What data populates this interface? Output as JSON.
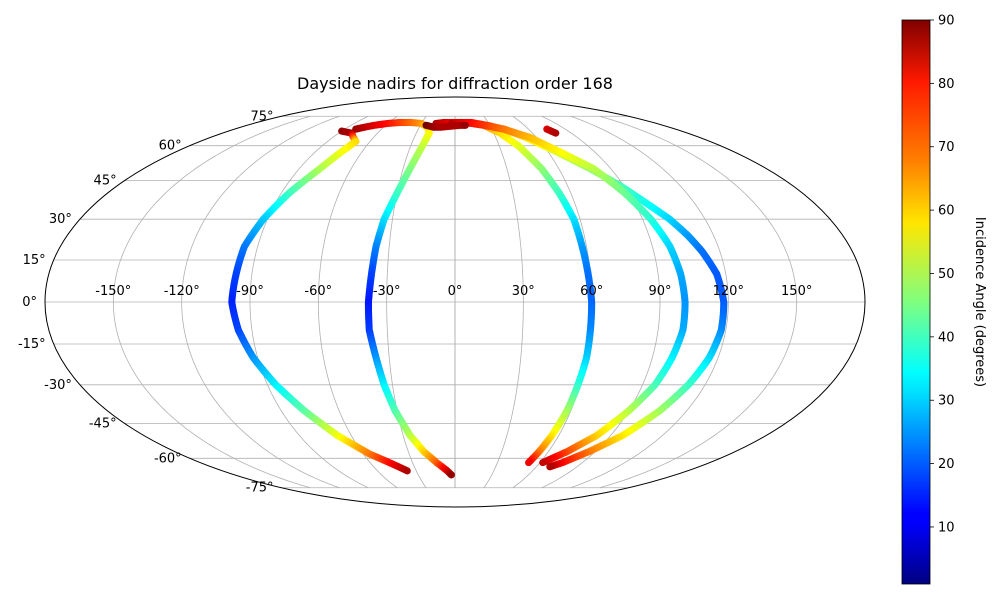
{
  "chart_data": {
    "type": "scatter",
    "title": "Dayside nadirs for diffraction order 168",
    "projection": "mollweide",
    "grid": true,
    "xlabel": "",
    "ylabel": "",
    "lon_ticks": [
      "-150°",
      "-120°",
      "-90°",
      "-60°",
      "-30°",
      "0°",
      "30°",
      "60°",
      "90°",
      "120°",
      "150°"
    ],
    "lat_ticks": [
      "75°",
      "60°",
      "45°",
      "30°",
      "15°",
      "0°",
      "-15°",
      "-30°",
      "-45°",
      "-60°",
      "-75°"
    ],
    "lat_range": [
      -75,
      75
    ],
    "colorbar": {
      "label": "Incidence Angle (degrees)",
      "colormap": "jet",
      "range": [
        1,
        90
      ],
      "ticks": [
        "10",
        "20",
        "30",
        "40",
        "50",
        "60",
        "70",
        "80",
        "90"
      ],
      "placement": "right"
    },
    "series": [
      {
        "points": [
          [
            -81,
            68,
            88
          ],
          [
            -76,
            69,
            85
          ],
          [
            -70,
            70,
            82
          ],
          [
            -60,
            71,
            78
          ],
          [
            -50,
            71.5,
            74
          ],
          [
            -40,
            71.5,
            70
          ],
          [
            -30,
            71,
            66
          ],
          [
            -23,
            69,
            61
          ],
          [
            -20,
            66,
            57
          ],
          [
            -22,
            60,
            52
          ],
          [
            -26,
            50,
            46
          ],
          [
            -30,
            40,
            40
          ],
          [
            -34,
            30,
            32
          ],
          [
            -36,
            20,
            24
          ],
          [
            -37,
            10,
            18
          ],
          [
            -38,
            0,
            14
          ],
          [
            -38,
            -10,
            17
          ],
          [
            -36,
            -20,
            25
          ],
          [
            -34,
            -30,
            33
          ],
          [
            -31,
            -40,
            41
          ],
          [
            -26,
            -50,
            50
          ],
          [
            -20,
            -57,
            60
          ],
          [
            -13,
            -62,
            70
          ],
          [
            -6,
            -66,
            82
          ],
          [
            -3,
            -68,
            88
          ]
        ]
      },
      {
        "points": [
          [
            -17,
            71,
            86
          ],
          [
            -10,
            71.5,
            83
          ],
          [
            -2,
            71.5,
            80
          ],
          [
            6,
            71.5,
            76
          ],
          [
            15,
            71,
            72
          ],
          [
            25,
            70,
            66
          ],
          [
            35,
            66,
            60
          ],
          [
            43,
            60,
            55
          ],
          [
            50,
            50,
            47
          ],
          [
            54,
            40,
            40
          ],
          [
            57,
            30,
            32
          ],
          [
            58,
            20,
            26
          ],
          [
            59,
            10,
            22
          ],
          [
            60,
            0,
            21
          ],
          [
            60,
            -10,
            24
          ],
          [
            60,
            -20,
            30
          ],
          [
            59,
            -30,
            38
          ],
          [
            58,
            -40,
            48
          ],
          [
            56,
            -50,
            58
          ],
          [
            54,
            -57,
            68
          ],
          [
            52,
            -62,
            80
          ]
        ]
      },
      {
        "points": [
          [
            -3,
            71,
            86
          ],
          [
            5,
            71.5,
            82
          ],
          [
            15,
            71.5,
            78
          ],
          [
            28,
            70,
            73
          ],
          [
            40,
            68,
            67
          ],
          [
            52,
            64,
            60
          ],
          [
            66,
            57,
            53
          ],
          [
            78,
            50,
            47
          ],
          [
            88,
            43,
            41
          ],
          [
            96,
            36,
            36
          ],
          [
            103,
            30,
            31
          ],
          [
            108,
            24,
            26
          ],
          [
            112,
            18,
            22
          ],
          [
            116,
            10,
            20
          ],
          [
            118,
            0,
            20
          ],
          [
            118,
            -10,
            24
          ],
          [
            116,
            -20,
            31
          ],
          [
            112,
            -30,
            39
          ],
          [
            106,
            -40,
            48
          ],
          [
            97,
            -50,
            58
          ],
          [
            86,
            -57,
            68
          ],
          [
            76,
            -62,
            78
          ],
          [
            70,
            -64,
            86
          ]
        ]
      },
      {
        "points": [
          [
            10,
            71.5,
            80
          ],
          [
            25,
            70,
            75
          ],
          [
            40,
            68,
            69
          ],
          [
            55,
            64,
            63
          ],
          [
            68,
            57,
            57
          ],
          [
            80,
            50,
            51
          ],
          [
            88,
            40,
            44
          ],
          [
            94,
            30,
            38
          ],
          [
            98,
            20,
            31
          ],
          [
            100,
            10,
            27
          ],
          [
            101,
            0,
            25
          ],
          [
            101,
            -10,
            27
          ],
          [
            99,
            -20,
            33
          ],
          [
            96,
            -30,
            40
          ],
          [
            90,
            -40,
            50
          ],
          [
            82,
            -50,
            60
          ],
          [
            72,
            -57,
            72
          ],
          [
            62,
            -62,
            84
          ]
        ]
      },
      {
        "points": [
          [
            -90,
            67,
            88
          ],
          [
            -80,
            66,
            86
          ],
          [
            -70,
            62,
            60
          ],
          [
            -78,
            50,
            50
          ],
          [
            -86,
            40,
            40
          ],
          [
            -92,
            30,
            30
          ],
          [
            -96,
            20,
            23
          ],
          [
            -97,
            10,
            18
          ],
          [
            -98,
            0,
            15
          ],
          [
            -96,
            -10,
            18
          ],
          [
            -92,
            -20,
            25
          ],
          [
            -86,
            -30,
            33
          ],
          [
            -78,
            -40,
            42
          ],
          [
            -68,
            -50,
            55
          ],
          [
            -56,
            -58,
            68
          ],
          [
            -44,
            -63,
            80
          ],
          [
            -37,
            -66,
            86
          ]
        ]
      },
      {
        "points": [
          [
            -25,
            70,
            92
          ],
          [
            -18,
            69,
            88
          ],
          [
            -12,
            69,
            86
          ],
          [
            5,
            70,
            86
          ],
          [
            9,
            70,
            88
          ]
        ]
      },
      {
        "points": [
          [
            75,
            68,
            82
          ],
          [
            78,
            66,
            86
          ]
        ]
      }
    ]
  }
}
